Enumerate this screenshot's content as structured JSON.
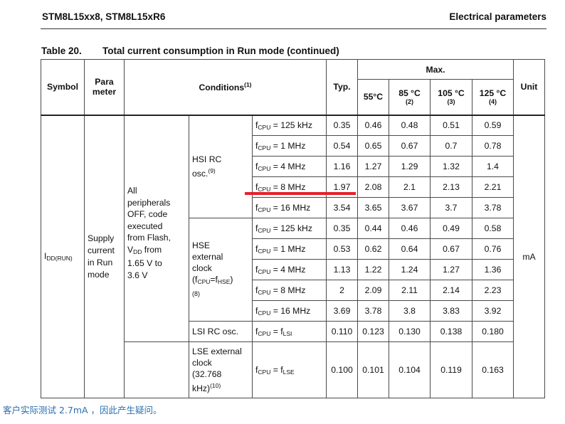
{
  "header": {
    "left": "STM8L15xx8, STM8L15xR6",
    "right": "Electrical parameters"
  },
  "caption": {
    "number": "Table 20.",
    "title": "Total current consumption in Run mode  (continued)"
  },
  "columns": {
    "symbol": "Symbol",
    "param_line1": "Para",
    "param_line2": "meter",
    "conditions": "Conditions",
    "conditions_note": "(1)",
    "typ": "Typ.",
    "max": "Max.",
    "t55": "55°C",
    "t85": "85 °C",
    "t85_note": "(2)",
    "t105": "105 °C",
    "t105_note": "(3)",
    "t125": "125 °C",
    "t125_note": "(4)",
    "unit": "Unit"
  },
  "symbol": {
    "main": "I",
    "sub": "DD(RUN)"
  },
  "parameter": {
    "l1": "Supply",
    "l2": "current",
    "l3": "in Run",
    "l4": "mode"
  },
  "condition_main": {
    "l1": "All",
    "l2": "peripherals",
    "l3": "OFF, code",
    "l4": "executed",
    "l5": "from Flash,",
    "l6_main": "V",
    "l6_sub": "DD",
    "l6_rest": " from",
    "l7": "1.65 V to",
    "l8": "3.6 V"
  },
  "groups": {
    "hsi": {
      "l1": "HSI RC",
      "l2": "osc.",
      "note": "(9)"
    },
    "hse": {
      "l1": "HSE",
      "l2": "external",
      "l3": "clock",
      "l4a": "(f",
      "l4sub": "CPU",
      "l4b": "=f",
      "l4sub2": "HSE",
      "l4c": ")",
      "note": "(8)"
    },
    "lsi": {
      "l1": "LSI RC osc."
    },
    "lse": {
      "l1": "LSE external",
      "l2": "clock",
      "l3": "(32.768",
      "l4": "kHz)",
      "note": "(10)"
    }
  },
  "fcpu": {
    "main": "f",
    "sub": "CPU"
  },
  "rows": [
    {
      "cond": " = 125 kHz",
      "typ": "0.35",
      "t55": "0.46",
      "t85": "0.48",
      "t105": "0.51",
      "t125": "0.59"
    },
    {
      "cond": " = 1 MHz",
      "typ": "0.54",
      "t55": "0.65",
      "t85": "0.67",
      "t105": "0.7",
      "t125": "0.78"
    },
    {
      "cond": " = 4 MHz",
      "typ": "1.16",
      "t55": "1.27",
      "t85": "1.29",
      "t105": "1.32",
      "t125": "1.4"
    },
    {
      "cond": " = 8 MHz",
      "typ": "1.97",
      "t55": "2.08",
      "t85": "2.1",
      "t105": "2.13",
      "t125": "2.21"
    },
    {
      "cond": " = 16 MHz",
      "typ": "3.54",
      "t55": "3.65",
      "t85": "3.67",
      "t105": "3.7",
      "t125": "3.78"
    },
    {
      "cond": " = 125 kHz",
      "typ": "0.35",
      "t55": "0.44",
      "t85": "0.46",
      "t105": "0.49",
      "t125": "0.58"
    },
    {
      "cond": " = 1 MHz",
      "typ": "0.53",
      "t55": "0.62",
      "t85": "0.64",
      "t105": "0.67",
      "t125": "0.76"
    },
    {
      "cond": " = 4 MHz",
      "typ": "1.13",
      "t55": "1.22",
      "t85": "1.24",
      "t105": "1.27",
      "t125": "1.36"
    },
    {
      "cond": " = 8 MHz",
      "typ": "2",
      "t55": "2.09",
      "t85": "2.11",
      "t105": "2.14",
      "t125": "2.23"
    },
    {
      "cond": " = 16 MHz",
      "typ": "3.69",
      "t55": "3.78",
      "t85": "3.8",
      "t105": "3.83",
      "t125": "3.92"
    },
    {
      "cond": " = f",
      "cond_sub": "LSI",
      "typ": "0.110",
      "t55": "0.123",
      "t85": "0.130",
      "t105": "0.138",
      "t125": "0.180"
    },
    {
      "cond": " = f",
      "cond_sub": "LSE",
      "typ": "0.100",
      "t55": "0.101",
      "t85": "0.104",
      "t105": "0.119",
      "t125": "0.163"
    }
  ],
  "unit": "mA",
  "annotation": {
    "highlight_color": "#e8202a",
    "footnote": "客户实际测试 2.7mA ，因此产生疑问。"
  }
}
